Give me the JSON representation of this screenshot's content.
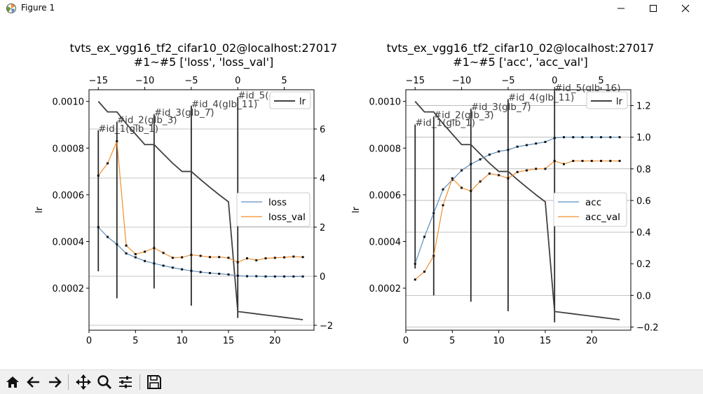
{
  "window": {
    "title": "Figure 1",
    "minimize_icon": "minimize-icon",
    "maximize_icon": "maximize-icon",
    "close_icon": "close-icon"
  },
  "toolbar": {
    "icons": [
      "home-icon",
      "back-arrow-icon",
      "forward-arrow-icon",
      "pan-icon",
      "zoom-icon",
      "configure-subplots-icon",
      "save-icon"
    ]
  },
  "colors": {
    "series1": "#5a8fc0",
    "series2": "#f28e2b",
    "lr": "#404040",
    "vline": "#2a2a2a",
    "grid": "#b0b0b0"
  },
  "chart_data": [
    {
      "type": "line",
      "title_line1": "tvts_ex_vgg16_tf2_cifar10_02@localhost:27017",
      "title_line2": "#1~#5 ['loss', 'loss_val']",
      "ylabel": "lr",
      "xlim": [
        0,
        24.2
      ],
      "x_ticks": [
        0,
        5,
        10,
        15,
        20
      ],
      "top_x_ticks": [
        "−15",
        "−10",
        "−5",
        "0",
        "5"
      ],
      "top_x_tick_positions": [
        1,
        6,
        11,
        16,
        21
      ],
      "ylim": [
        2e-05,
        0.00105
      ],
      "y_ticks": [
        0.0002,
        0.0004,
        0.0006,
        0.0008,
        0.001
      ],
      "y_tick_labels": [
        "0.0002",
        "0.0004",
        "0.0006",
        "0.0008",
        "0.0010"
      ],
      "y2lim": [
        -2.2,
        7.6
      ],
      "y2_ticks": [
        -2,
        0,
        2,
        4,
        6
      ],
      "y2_tick_labels": [
        "−2",
        "0",
        "2",
        "4",
        "6"
      ],
      "grid_y2": [
        -2,
        0,
        2,
        4,
        6
      ],
      "lr": {
        "name": "lr",
        "x": [
          1,
          2,
          3,
          4,
          5,
          6,
          7,
          8,
          9,
          10,
          11,
          12,
          13,
          14,
          15,
          16,
          17,
          18,
          19,
          20,
          21,
          22,
          23
        ],
        "y": [
          0.001,
          0.000955,
          0.000955,
          0.000905,
          0.00086,
          0.000815,
          0.000815,
          0.000775,
          0.000735,
          0.0007,
          0.0007,
          0.000665,
          0.000632,
          0.0006,
          0.00057,
          0.0001,
          9.5e-05,
          9e-05,
          8.5e-05,
          8e-05,
          7.5e-05,
          7e-05,
          6.5e-05
        ]
      },
      "series": [
        {
          "name": "loss",
          "x": [
            1,
            2,
            3,
            4,
            5,
            6,
            7,
            8,
            9,
            10,
            11,
            12,
            13,
            14,
            15,
            16,
            17,
            18,
            19,
            20,
            21,
            22,
            23
          ],
          "y": [
            2.0,
            1.6,
            1.3,
            0.93,
            0.77,
            0.62,
            0.52,
            0.43,
            0.35,
            0.28,
            0.22,
            0.17,
            0.13,
            0.1,
            0.07,
            0.02,
            0.0,
            0.0,
            -0.01,
            -0.01,
            -0.01,
            -0.01,
            -0.01
          ]
        },
        {
          "name": "loss_val",
          "x": [
            1,
            2,
            3,
            4,
            5,
            6,
            7,
            8,
            9,
            10,
            11,
            12,
            13,
            14,
            15,
            16,
            17,
            18,
            19,
            20,
            21,
            22,
            23
          ],
          "y": [
            4.1,
            4.6,
            5.5,
            1.25,
            0.9,
            1.0,
            1.15,
            0.95,
            0.75,
            0.77,
            0.87,
            0.83,
            0.78,
            0.78,
            0.75,
            0.57,
            0.73,
            0.65,
            0.73,
            0.75,
            0.77,
            0.8,
            0.78
          ]
        }
      ],
      "vlines": [
        {
          "x": 1,
          "label": "#id_1(glb_1)",
          "y2_range": [
            0.2,
            5.95
          ]
        },
        {
          "x": 3,
          "label": "#id_2(glb_3)",
          "y2_range": [
            -0.9,
            6.3
          ]
        },
        {
          "x": 7,
          "label": "#id_3(glb_7)",
          "y2_range": [
            -0.5,
            6.6
          ]
        },
        {
          "x": 11,
          "label": "#id_4(glb_11)",
          "y2_range": [
            -1.2,
            6.95
          ]
        },
        {
          "x": 16,
          "label": "#id_5(glb_16)",
          "y2_range": [
            -1.7,
            7.3
          ]
        }
      ],
      "legend_lr": "lr",
      "legend_lr_position": "top-right",
      "legend_series_position": "center-right"
    },
    {
      "type": "line",
      "title_line1": "tvts_ex_vgg16_tf2_cifar10_02@localhost:27017",
      "title_line2": "#1~#5 ['acc', 'acc_val']",
      "ylabel": "lr",
      "xlim": [
        0,
        24.2
      ],
      "x_ticks": [
        0,
        5,
        10,
        15,
        20
      ],
      "top_x_ticks": [
        "−15",
        "−10",
        "−5",
        "0",
        "5"
      ],
      "top_x_tick_positions": [
        1,
        6,
        11,
        16,
        21
      ],
      "ylim": [
        2e-05,
        0.00105
      ],
      "y_ticks": [
        0.0002,
        0.0004,
        0.0006,
        0.0008,
        0.001
      ],
      "y_tick_labels": [
        "0.0002",
        "0.0004",
        "0.0006",
        "0.0008",
        "0.0010"
      ],
      "y2lim": [
        -0.22,
        1.3
      ],
      "y2_ticks": [
        -0.2,
        0.0,
        0.2,
        0.4,
        0.6,
        0.8,
        1.0,
        1.2
      ],
      "y2_tick_labels": [
        "−0.2",
        "0.0",
        "0.2",
        "0.4",
        "0.6",
        "0.8",
        "1.0",
        "1.2"
      ],
      "grid_y2": [
        -0.2,
        0.0,
        0.4,
        0.6,
        0.8,
        1.0,
        1.2
      ],
      "lr": {
        "name": "lr",
        "x": [
          1,
          2,
          3,
          4,
          5,
          6,
          7,
          8,
          9,
          10,
          11,
          12,
          13,
          14,
          15,
          16,
          17,
          18,
          19,
          20,
          21,
          22,
          23
        ],
        "y": [
          0.001,
          0.000955,
          0.000955,
          0.000905,
          0.00086,
          0.000815,
          0.000815,
          0.000775,
          0.000735,
          0.0007,
          0.0007,
          0.000665,
          0.000632,
          0.0006,
          0.00057,
          0.0001,
          9.5e-05,
          9e-05,
          8.5e-05,
          8e-05,
          7.5e-05,
          7e-05,
          6.5e-05
        ]
      },
      "series": [
        {
          "name": "acc",
          "x": [
            1,
            2,
            3,
            4,
            5,
            6,
            7,
            8,
            9,
            10,
            11,
            12,
            13,
            14,
            15,
            16,
            17,
            18,
            19,
            20,
            21,
            22,
            23
          ],
          "y": [
            0.2,
            0.37,
            0.52,
            0.67,
            0.73,
            0.79,
            0.83,
            0.86,
            0.89,
            0.91,
            0.92,
            0.94,
            0.95,
            0.96,
            0.97,
            0.995,
            1.0,
            1.0,
            1.0,
            1.0,
            1.0,
            1.0,
            1.0
          ]
        },
        {
          "name": "acc_val",
          "x": [
            1,
            2,
            3,
            4,
            5,
            6,
            7,
            8,
            9,
            10,
            11,
            12,
            13,
            14,
            15,
            16,
            17,
            18,
            19,
            20,
            21,
            22,
            23
          ],
          "y": [
            0.1,
            0.15,
            0.25,
            0.57,
            0.74,
            0.68,
            0.66,
            0.72,
            0.77,
            0.76,
            0.74,
            0.78,
            0.79,
            0.8,
            0.8,
            0.85,
            0.83,
            0.85,
            0.85,
            0.85,
            0.85,
            0.85,
            0.85
          ]
        }
      ],
      "vlines": [
        {
          "x": 1,
          "label": "#id_1(glb_1)",
          "y2_range": [
            0.17,
            1.08
          ]
        },
        {
          "x": 3,
          "label": "#id_2(glb_3)",
          "y2_range": [
            0.0,
            1.13
          ]
        },
        {
          "x": 7,
          "label": "#id_3(glb_7)",
          "y2_range": [
            -0.04,
            1.18
          ]
        },
        {
          "x": 11,
          "label": "#id_4(glb_11)",
          "y2_range": [
            -0.1,
            1.24
          ]
        },
        {
          "x": 16,
          "label": "#id_5(glb_16)",
          "y2_range": [
            -0.17,
            1.3
          ]
        }
      ],
      "legend_lr": "lr",
      "legend_lr_position": "top-right",
      "legend_series_position": "center-right"
    }
  ]
}
